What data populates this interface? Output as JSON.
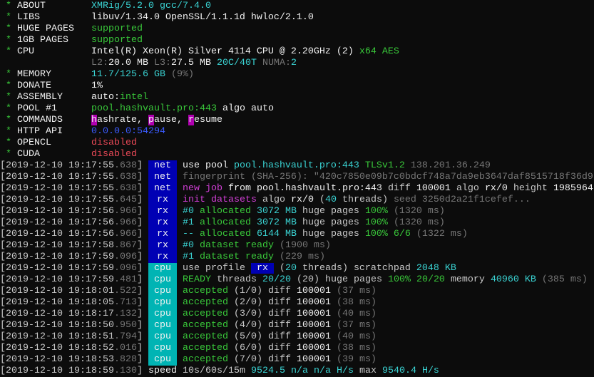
{
  "colors": {
    "text": "#c8c8c8",
    "cyan": "#3ad3d3",
    "green": "#39c83a",
    "gray": "#767676",
    "blue": "#3b5bff",
    "red": "#e74856",
    "magenta": "#d23fd6",
    "tag_net": "#0000b4",
    "tag_cpu": "#00b4b4",
    "background": "#0c0c0c"
  },
  "header": [
    {
      "label": "ABOUT",
      "segments": [
        [
          "XMRig/5.2.0 gcc/7.4.0",
          "c"
        ]
      ]
    },
    {
      "label": "LIBS",
      "segments": [
        [
          "libuv/1.34.0 OpenSSL/1.1.1d hwloc/2.1.0",
          "W"
        ]
      ]
    },
    {
      "label": "HUGE PAGES",
      "segments": [
        [
          "supported",
          "g"
        ]
      ]
    },
    {
      "label": "1GB PAGES",
      "segments": [
        [
          "supported",
          "g"
        ]
      ]
    },
    {
      "label": "CPU",
      "segments": [
        [
          "Intel(R) Xeon(R) Silver 4114 CPU @ 2.20GHz (2) ",
          "W"
        ],
        [
          "x64 AES",
          "g"
        ]
      ]
    },
    {
      "label": "",
      "star": false,
      "segments": [
        [
          "L2:",
          "G"
        ],
        [
          "20.0 MB ",
          "W"
        ],
        [
          "L3:",
          "G"
        ],
        [
          "27.5 MB ",
          "W"
        ],
        [
          "20C/40T ",
          "c"
        ],
        [
          "NUMA:",
          "G"
        ],
        [
          "2",
          "c"
        ]
      ]
    },
    {
      "label": "MEMORY",
      "segments": [
        [
          "11.7/125.6 GB ",
          "c"
        ],
        [
          "(9%)",
          "G"
        ]
      ]
    },
    {
      "label": "DONATE",
      "segments": [
        [
          "1%",
          "W"
        ]
      ]
    },
    {
      "label": "ASSEMBLY",
      "segments": [
        [
          "auto:",
          "W"
        ],
        [
          "intel",
          "g"
        ]
      ]
    },
    {
      "label": "POOL #1",
      "segments": [
        [
          "pool.hashvault.pro:443 ",
          "g"
        ],
        [
          "algo auto",
          "W"
        ]
      ]
    },
    {
      "label": "COMMANDS",
      "segments": [
        [
          "h",
          "M"
        ],
        [
          "ashrate, ",
          "W"
        ],
        [
          "p",
          "M"
        ],
        [
          "ause, ",
          "W"
        ],
        [
          "r",
          "M"
        ],
        [
          "esume",
          "W"
        ]
      ]
    },
    {
      "label": "HTTP API",
      "segments": [
        [
          "0.0.0.0:54294",
          "b"
        ]
      ]
    },
    {
      "label": "OPENCL",
      "segments": [
        [
          "disabled",
          "r"
        ]
      ]
    },
    {
      "label": "CUDA",
      "segments": [
        [
          "disabled",
          "r"
        ]
      ]
    }
  ],
  "log": [
    {
      "time": "2019-12-10 19:17:55",
      "ms": ".638",
      "tag": "net",
      "segments": [
        [
          "use pool ",
          "W"
        ],
        [
          "pool.hashvault.pro:443 ",
          "c"
        ],
        [
          "TLSv1.2 ",
          "g"
        ],
        [
          "138.201.36.249",
          "G"
        ]
      ]
    },
    {
      "time": "2019-12-10 19:17:55",
      "ms": ".638",
      "tag": "net",
      "segments": [
        [
          "fingerprint (SHA-256): \"420c7850e09b7c0bdcf748a7da9eb3647daf8515718f36d9",
          "G"
        ]
      ]
    },
    {
      "time": "2019-12-10 19:17:55",
      "ms": ".638",
      "tag": "net",
      "segments": [
        [
          "new job",
          "m"
        ],
        [
          " from ",
          "W"
        ],
        [
          "pool.hashvault.pro:443 ",
          "W"
        ],
        [
          "diff ",
          "w"
        ],
        [
          "100001 ",
          "W"
        ],
        [
          "algo ",
          "w"
        ],
        [
          "rx/0 ",
          "W"
        ],
        [
          "height ",
          "w"
        ],
        [
          "1985964",
          "W"
        ]
      ]
    },
    {
      "time": "2019-12-10 19:17:55",
      "ms": ".645",
      "tag": "rx",
      "segments": [
        [
          "init datasets",
          "m"
        ],
        [
          " algo ",
          "w"
        ],
        [
          "rx/0 ",
          "W"
        ],
        [
          "(",
          "w"
        ],
        [
          "40",
          "c"
        ],
        [
          " threads) ",
          "w"
        ],
        [
          "seed 3250d2a21f1cefef...",
          "G"
        ]
      ]
    },
    {
      "time": "2019-12-10 19:17:56",
      "ms": ".966",
      "tag": "rx",
      "segments": [
        [
          "#0 ",
          "c"
        ],
        [
          "allocated ",
          "g"
        ],
        [
          "3072 MB ",
          "c"
        ],
        [
          "huge pages ",
          "w"
        ],
        [
          "100% ",
          "g"
        ],
        [
          "(1320 ms)",
          "G"
        ]
      ]
    },
    {
      "time": "2019-12-10 19:17:56",
      "ms": ".966",
      "tag": "rx",
      "segments": [
        [
          "#1 ",
          "c"
        ],
        [
          "allocated ",
          "g"
        ],
        [
          "3072 MB ",
          "c"
        ],
        [
          "huge pages ",
          "w"
        ],
        [
          "100% ",
          "g"
        ],
        [
          "(1320 ms)",
          "G"
        ]
      ]
    },
    {
      "time": "2019-12-10 19:17:56",
      "ms": ".966",
      "tag": "rx",
      "segments": [
        [
          "-- ",
          "c"
        ],
        [
          "allocated ",
          "g"
        ],
        [
          "6144 MB ",
          "c"
        ],
        [
          "huge pages ",
          "w"
        ],
        [
          "100% 6/6 ",
          "g"
        ],
        [
          "(1322 ms)",
          "G"
        ]
      ]
    },
    {
      "time": "2019-12-10 19:17:58",
      "ms": ".867",
      "tag": "rx",
      "segments": [
        [
          "#0 ",
          "c"
        ],
        [
          "dataset ready ",
          "g"
        ],
        [
          "(1900 ms)",
          "G"
        ]
      ]
    },
    {
      "time": "2019-12-10 19:17:59",
      "ms": ".096",
      "tag": "rx",
      "segments": [
        [
          "#1 ",
          "c"
        ],
        [
          "dataset ready ",
          "g"
        ],
        [
          "(229 ms)",
          "G"
        ]
      ]
    },
    {
      "time": "2019-12-10 19:17:59",
      "ms": ".096",
      "tag": "cpu",
      "segments": [
        [
          "use profile ",
          "w"
        ],
        [
          " rx ",
          "rxbox"
        ],
        [
          " (",
          "w"
        ],
        [
          "20",
          "c"
        ],
        [
          " threads) ",
          "w"
        ],
        [
          "scratchpad ",
          "w"
        ],
        [
          "2048 KB",
          "c"
        ]
      ]
    },
    {
      "time": "2019-12-10 19:17:59",
      "ms": ".481",
      "tag": "cpu",
      "segments": [
        [
          "READY ",
          "g"
        ],
        [
          "threads ",
          "w"
        ],
        [
          "20/20 ",
          "c"
        ],
        [
          "(20) ",
          "w"
        ],
        [
          "huge pages ",
          "w"
        ],
        [
          "100% 20/20 ",
          "g"
        ],
        [
          "memory ",
          "w"
        ],
        [
          "40960 KB ",
          "c"
        ],
        [
          "(385 ms)",
          "G"
        ]
      ]
    },
    {
      "time": "2019-12-10 19:18:01",
      "ms": ".522",
      "tag": "cpu",
      "segments": [
        [
          "accepted ",
          "g"
        ],
        [
          "(1/0) ",
          "w"
        ],
        [
          "diff ",
          "w"
        ],
        [
          "100001 ",
          "W"
        ],
        [
          "(37 ms)",
          "G"
        ]
      ]
    },
    {
      "time": "2019-12-10 19:18:05",
      "ms": ".713",
      "tag": "cpu",
      "segments": [
        [
          "accepted ",
          "g"
        ],
        [
          "(2/0) ",
          "w"
        ],
        [
          "diff ",
          "w"
        ],
        [
          "100001 ",
          "W"
        ],
        [
          "(38 ms)",
          "G"
        ]
      ]
    },
    {
      "time": "2019-12-10 19:18:17",
      "ms": ".132",
      "tag": "cpu",
      "segments": [
        [
          "accepted ",
          "g"
        ],
        [
          "(3/0) ",
          "w"
        ],
        [
          "diff ",
          "w"
        ],
        [
          "100001 ",
          "W"
        ],
        [
          "(40 ms)",
          "G"
        ]
      ]
    },
    {
      "time": "2019-12-10 19:18:50",
      "ms": ".950",
      "tag": "cpu",
      "segments": [
        [
          "accepted ",
          "g"
        ],
        [
          "(4/0) ",
          "w"
        ],
        [
          "diff ",
          "w"
        ],
        [
          "100001 ",
          "W"
        ],
        [
          "(37 ms)",
          "G"
        ]
      ]
    },
    {
      "time": "2019-12-10 19:18:51",
      "ms": ".794",
      "tag": "cpu",
      "segments": [
        [
          "accepted ",
          "g"
        ],
        [
          "(5/0) ",
          "w"
        ],
        [
          "diff ",
          "w"
        ],
        [
          "100001 ",
          "W"
        ],
        [
          "(40 ms)",
          "G"
        ]
      ]
    },
    {
      "time": "2019-12-10 19:18:52",
      "ms": ".016",
      "tag": "cpu",
      "segments": [
        [
          "accepted ",
          "g"
        ],
        [
          "(6/0) ",
          "w"
        ],
        [
          "diff ",
          "w"
        ],
        [
          "100001 ",
          "W"
        ],
        [
          "(38 ms)",
          "G"
        ]
      ]
    },
    {
      "time": "2019-12-10 19:18:53",
      "ms": ".828",
      "tag": "cpu",
      "segments": [
        [
          "accepted ",
          "g"
        ],
        [
          "(7/0) ",
          "w"
        ],
        [
          "diff ",
          "w"
        ],
        [
          "100001 ",
          "W"
        ],
        [
          "(39 ms)",
          "G"
        ]
      ]
    },
    {
      "time": "2019-12-10 19:18:59",
      "ms": ".130",
      "tag": "speed",
      "plain": true,
      "segments": [
        [
          "10s/60s/15m ",
          "w"
        ],
        [
          "9524.5 ",
          "c"
        ],
        [
          "n/a n/a ",
          "c"
        ],
        [
          "H/s ",
          "c"
        ],
        [
          "max ",
          "w"
        ],
        [
          "9540.4 H/s",
          "c"
        ]
      ]
    }
  ]
}
